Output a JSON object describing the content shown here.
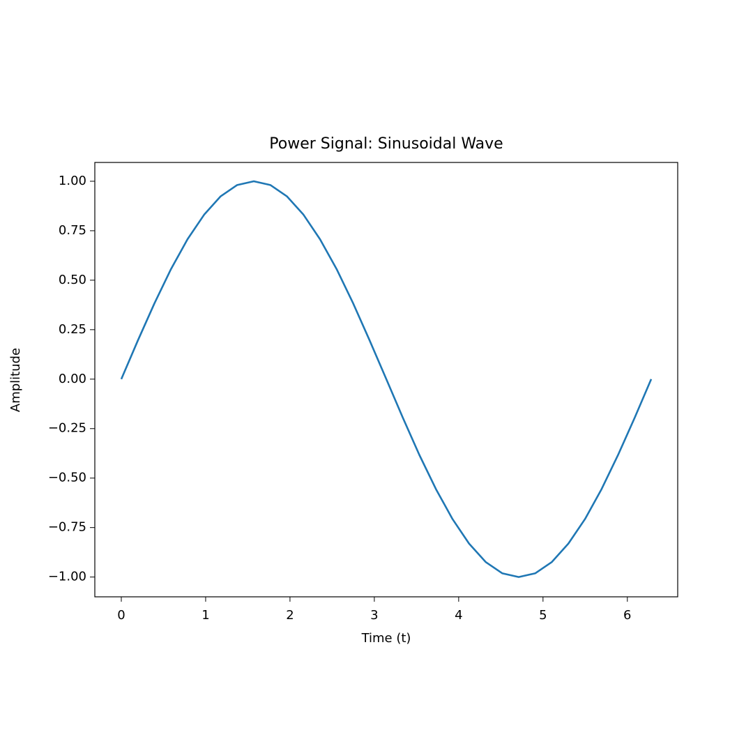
{
  "chart_data": {
    "type": "line",
    "title": "Power Signal: Sinusoidal Wave",
    "x_label": "Time (t)",
    "y_label": "Amplitude",
    "x": [
      0,
      0.196,
      0.393,
      0.589,
      0.785,
      0.982,
      1.178,
      1.374,
      1.571,
      1.767,
      1.963,
      2.16,
      2.356,
      2.553,
      2.749,
      2.945,
      3.142,
      3.338,
      3.534,
      3.731,
      3.927,
      4.123,
      4.32,
      4.516,
      4.712,
      4.909,
      5.105,
      5.301,
      5.498,
      5.694,
      5.89,
      6.087,
      6.283
    ],
    "series": [
      {
        "color": "#1f77b4",
        "values": [
          0,
          0.195,
          0.383,
          0.556,
          0.707,
          0.831,
          0.924,
          0.981,
          1,
          0.981,
          0.924,
          0.831,
          0.707,
          0.556,
          0.383,
          0.195,
          0,
          -0.195,
          -0.383,
          -0.556,
          -0.707,
          -0.831,
          -0.924,
          -0.981,
          -1,
          -0.981,
          -0.924,
          -0.831,
          -0.707,
          -0.556,
          -0.383,
          -0.195,
          0
        ]
      }
    ],
    "xlim": [
      -0.314,
      6.597
    ],
    "ylim": [
      -1.1,
      1.095
    ],
    "xticks": [
      0,
      1,
      2,
      3,
      4,
      5,
      6
    ],
    "yticks": [
      {
        "value": -1,
        "label": "−1.00"
      },
      {
        "value": -0.75,
        "label": "−0.75"
      },
      {
        "value": -0.5,
        "label": "−0.50"
      },
      {
        "value": -0.25,
        "label": "−0.25"
      },
      {
        "value": 0,
        "label": "0.00"
      },
      {
        "value": 0.25,
        "label": "0.25"
      },
      {
        "value": 0.5,
        "label": "0.50"
      },
      {
        "value": 0.75,
        "label": "0.75"
      },
      {
        "value": 1,
        "label": "1.00"
      }
    ],
    "grid": false
  }
}
